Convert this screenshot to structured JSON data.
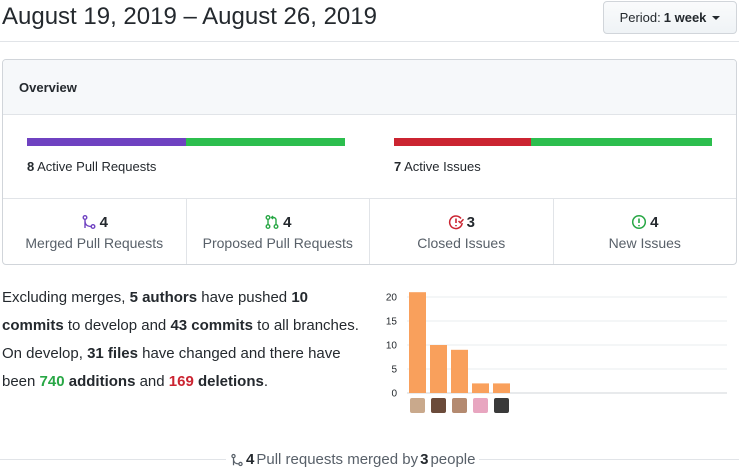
{
  "header": {
    "title": "August 19, 2019 – August 26, 2019",
    "period_prefix": "Period:",
    "period_value": "1 week"
  },
  "overview": {
    "title": "Overview",
    "pull_requests": {
      "count": "8",
      "label": "Active Pull Requests",
      "bar": [
        {
          "fraction": 0.5,
          "color": "#6f42c1"
        },
        {
          "fraction": 0.5,
          "color": "#2cbe4e"
        }
      ]
    },
    "issues": {
      "count": "7",
      "label": "Active Issues",
      "bar": [
        {
          "fraction": 0.43,
          "color": "#cb2431"
        },
        {
          "fraction": 0.57,
          "color": "#2cbe4e"
        }
      ]
    },
    "stats": [
      {
        "icon": "git-merge-icon",
        "count": "4",
        "label": "Merged Pull Requests",
        "color": "#6f42c1"
      },
      {
        "icon": "git-pull-request-icon",
        "count": "4",
        "label": "Proposed Pull Requests",
        "color": "#28a745"
      },
      {
        "icon": "issue-closed-icon",
        "count": "3",
        "label": "Closed Issues",
        "color": "#cb2431"
      },
      {
        "icon": "issue-opened-icon",
        "count": "4",
        "label": "New Issues",
        "color": "#28a745"
      }
    ]
  },
  "summary": {
    "t1": "Excluding merges, ",
    "authors": "5 authors",
    "t2": " have pushed ",
    "commits_develop": "10 commits",
    "t3": " to develop and ",
    "commits_all": "43 commits",
    "t4": " to all branches. On develop, ",
    "files": "31 files",
    "t5": " have changed and there have been ",
    "additions_num": "740",
    "additions_word": "additions",
    "t6": " and ",
    "deletions_num": "169",
    "deletions_word": "deletions",
    "t7": "."
  },
  "chart_data": {
    "type": "bar",
    "values": [
      21,
      10,
      9,
      2,
      2
    ],
    "ylim": [
      0,
      20
    ],
    "yticks": [
      "20",
      "15",
      "10",
      "5",
      "0"
    ],
    "bar_color": "#f9a05c",
    "avatar_colors": [
      "#c9a98c",
      "#6b4b3a",
      "#b48a70",
      "#e8a6c0",
      "#3a3a3a"
    ]
  },
  "footer": {
    "count": "4",
    "t1": "Pull requests merged by",
    "people_count": "3",
    "t2": "people"
  }
}
